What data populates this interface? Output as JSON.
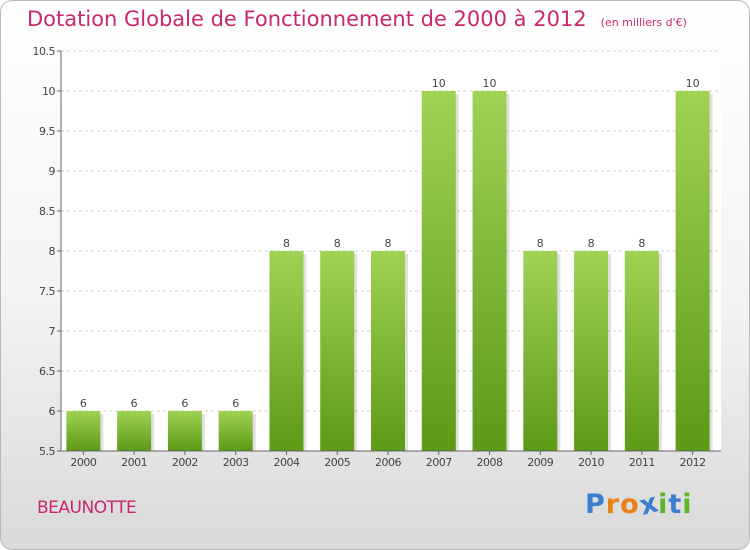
{
  "header": {
    "title": "Dotation Globale de Fonctionnement de 2000 à 2012",
    "subtitle": "(en milliers d'€)"
  },
  "footer": {
    "commune": "BEAUNOTTE",
    "logo_text": "Proxiti"
  },
  "colors": {
    "title": "#c8286e",
    "bar_top": "#a0d254",
    "bar_bottom": "#5c9a16",
    "logo": [
      "#3a7fcf",
      "#e8811a",
      "#e8811a",
      "#3a7fcf",
      "#5bb52a",
      "#3a7fcf",
      "#5bb52a"
    ]
  },
  "chart_data": {
    "type": "bar",
    "categories": [
      "2000",
      "2001",
      "2002",
      "2003",
      "2004",
      "2005",
      "2006",
      "2007",
      "2008",
      "2009",
      "2010",
      "2011",
      "2012"
    ],
    "values": [
      6,
      6,
      6,
      6,
      8,
      8,
      8,
      10,
      10,
      8,
      8,
      8,
      10
    ],
    "data_labels": [
      "6",
      "6",
      "6",
      "6",
      "8",
      "8",
      "8",
      "10",
      "10",
      "8",
      "8",
      "8",
      "10"
    ],
    "title": "Dotation Globale de Fonctionnement de 2000 à 2012",
    "subtitle": "(en milliers d'€)",
    "xlabel": "",
    "ylabel": "",
    "ylim": [
      5.5,
      10.5
    ],
    "yticks": [
      5.5,
      6,
      6.5,
      7,
      7.5,
      8,
      8.5,
      9,
      9.5,
      10,
      10.5
    ],
    "ytick_labels": [
      "5.5",
      "6",
      "6.5",
      "7",
      "7.5",
      "8",
      "8.5",
      "9",
      "9.5",
      "10",
      "10.5"
    ],
    "grid": true,
    "legend": "none"
  }
}
